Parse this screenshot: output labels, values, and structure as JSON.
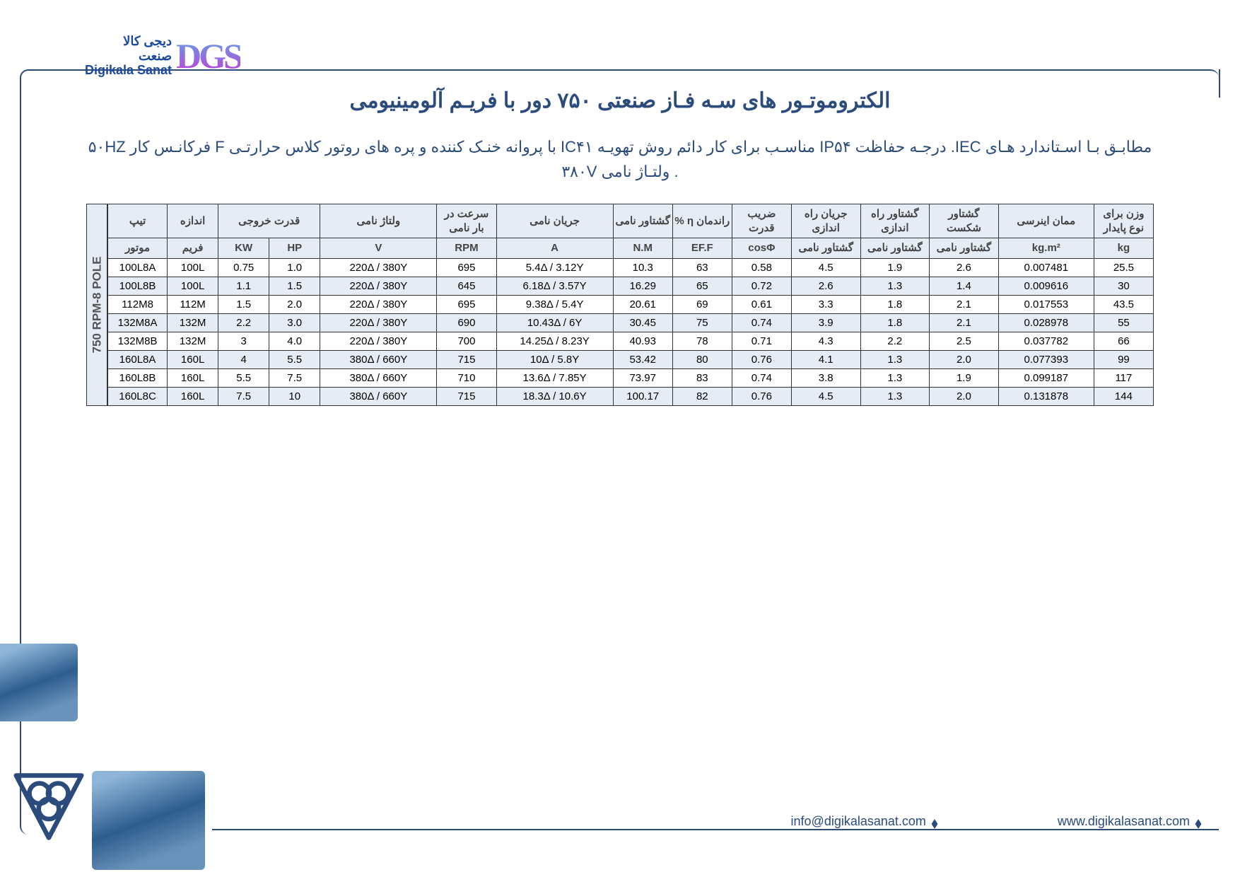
{
  "logo": {
    "line1_fa": "دیجی کالا",
    "line2_fa": "صنعت",
    "line3_en": "Digikala Sanat",
    "glyph": "DGS"
  },
  "title": "الکتروموتـور های سـه فـاز صنعتی ۷۵۰ دور با فریـم آلومینیومی",
  "subtitle": "مطابـق بـا اسـتاندارد هـای IEC. درجـه حفاظت IP۵۴ مناسـب برای کار دائم روش تهویـه IC۴۱ با پروانه خنـک کننده و پره های روتور کلاس حرارتـی F فرکانـس کار ۵۰HZ . ولتـاژ نامی ۳۸۰V",
  "side_label": "750 RPM-8 POLE",
  "columns": {
    "type": {
      "top": "تیپ",
      "bot": "موتور"
    },
    "frame": {
      "top": "اندازه",
      "bot": "فریم"
    },
    "power": {
      "top": "قدرت خروجی",
      "kw": "KW",
      "hp": "HP"
    },
    "volt": {
      "top": "ولتاژ نامی",
      "bot": "V"
    },
    "rpm": {
      "top": "سرعت در بار نامی",
      "bot": "RPM"
    },
    "amp": {
      "top": "جریان نامی",
      "bot": "A"
    },
    "nm": {
      "top": "گشتاور نامی",
      "bot": "N.M"
    },
    "eff": {
      "top": "راندمان η   %",
      "bot": "EF.F"
    },
    "cos": {
      "top": "ضریب قدرت",
      "bot": "cosΦ"
    },
    "sc": {
      "top": "جریان راه اندازی",
      "bot": "گشتاور نامی"
    },
    "st": {
      "top": "گشتاور راه اندازی",
      "bot": "گشتاور نامی"
    },
    "bt": {
      "top": "گشتاور شکست",
      "bot": "گشتاور نامی"
    },
    "inert": {
      "top": "ممان اینرسی",
      "bot": "kg.m²"
    },
    "wt": {
      "top": "وزن برای نوع پایدار",
      "bot": "kg"
    }
  },
  "rows": [
    {
      "type": "100L8A",
      "frame": "100L",
      "kw": "0.75",
      "hp": "1.0",
      "volt": "220Δ / 380Y",
      "rpm": "695",
      "amp": "5.4Δ / 3.12Y",
      "nm": "10.3",
      "eff": "63",
      "cos": "0.58",
      "sc": "4.5",
      "st": "1.9",
      "bt": "2.6",
      "inert": "0.007481",
      "wt": "25.5"
    },
    {
      "type": "100L8B",
      "frame": "100L",
      "kw": "1.1",
      "hp": "1.5",
      "volt": "220Δ / 380Y",
      "rpm": "645",
      "amp": "6.18Δ / 3.57Y",
      "nm": "16.29",
      "eff": "65",
      "cos": "0.72",
      "sc": "2.6",
      "st": "1.3",
      "bt": "1.4",
      "inert": "0.009616",
      "wt": "30"
    },
    {
      "type": "112M8",
      "frame": "112M",
      "kw": "1.5",
      "hp": "2.0",
      "volt": "220Δ / 380Y",
      "rpm": "695",
      "amp": "9.38Δ / 5.4Y",
      "nm": "20.61",
      "eff": "69",
      "cos": "0.61",
      "sc": "3.3",
      "st": "1.8",
      "bt": "2.1",
      "inert": "0.017553",
      "wt": "43.5"
    },
    {
      "type": "132M8A",
      "frame": "132M",
      "kw": "2.2",
      "hp": "3.0",
      "volt": "220Δ / 380Y",
      "rpm": "690",
      "amp": "10.43Δ / 6Y",
      "nm": "30.45",
      "eff": "75",
      "cos": "0.74",
      "sc": "3.9",
      "st": "1.8",
      "bt": "2.1",
      "inert": "0.028978",
      "wt": "55"
    },
    {
      "type": "132M8B",
      "frame": "132M",
      "kw": "3",
      "hp": "4.0",
      "volt": "220Δ / 380Y",
      "rpm": "700",
      "amp": "14.25Δ / 8.23Y",
      "nm": "40.93",
      "eff": "78",
      "cos": "0.71",
      "sc": "4.3",
      "st": "2.2",
      "bt": "2.5",
      "inert": "0.037782",
      "wt": "66"
    },
    {
      "type": "160L8A",
      "frame": "160L",
      "kw": "4",
      "hp": "5.5",
      "volt": "380Δ / 660Y",
      "rpm": "715",
      "amp": "10Δ / 5.8Y",
      "nm": "53.42",
      "eff": "80",
      "cos": "0.76",
      "sc": "4.1",
      "st": "1.3",
      "bt": "2.0",
      "inert": "0.077393",
      "wt": "99"
    },
    {
      "type": "160L8B",
      "frame": "160L",
      "kw": "5.5",
      "hp": "7.5",
      "volt": "380Δ / 660Y",
      "rpm": "710",
      "amp": "13.6Δ / 7.85Y",
      "nm": "73.97",
      "eff": "83",
      "cos": "0.74",
      "sc": "3.8",
      "st": "1.3",
      "bt": "1.9",
      "inert": "0.099187",
      "wt": "117"
    },
    {
      "type": "160L8C",
      "frame": "160L",
      "kw": "7.5",
      "hp": "10",
      "volt": "380Δ / 660Y",
      "rpm": "715",
      "amp": "18.3Δ / 10.6Y",
      "nm": "100.17",
      "eff": "82",
      "cos": "0.76",
      "sc": "4.5",
      "st": "1.3",
      "bt": "2.0",
      "inert": "0.131878",
      "wt": "144"
    }
  ],
  "footer": {
    "email": "info@digikalasanat.com",
    "web": "www.digikalasanat.com"
  },
  "colors": {
    "brand": "#2a4b7c",
    "header_bg": "#e6ecf5",
    "border": "#333333"
  }
}
